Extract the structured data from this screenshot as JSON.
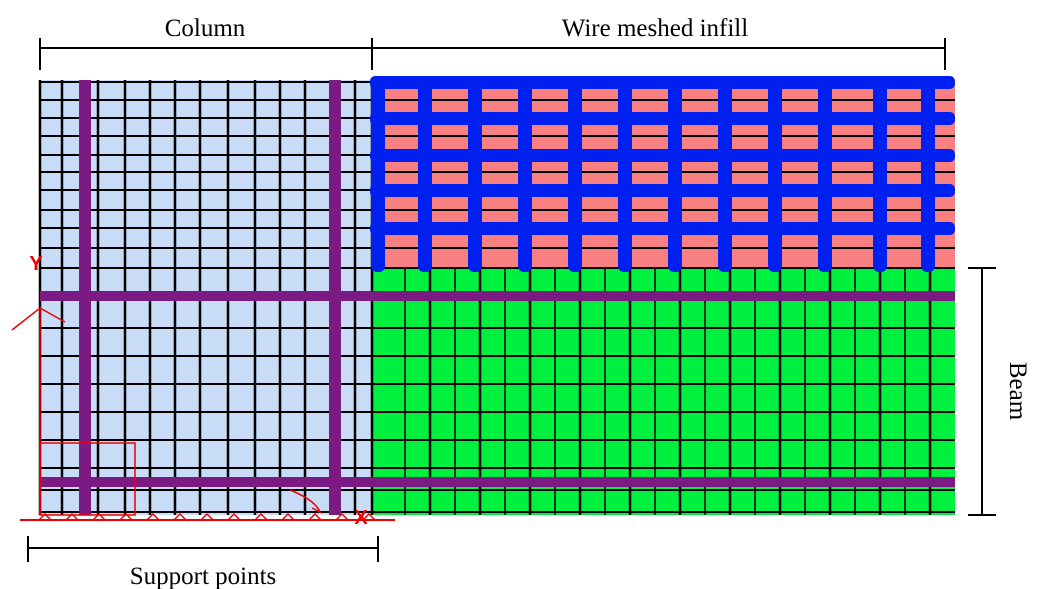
{
  "labels": {
    "column": "Column",
    "infill": "Wire meshed infill",
    "beam": "Beam",
    "supports": "Support points"
  },
  "axes": {
    "y": "Y",
    "x": "X"
  }
}
